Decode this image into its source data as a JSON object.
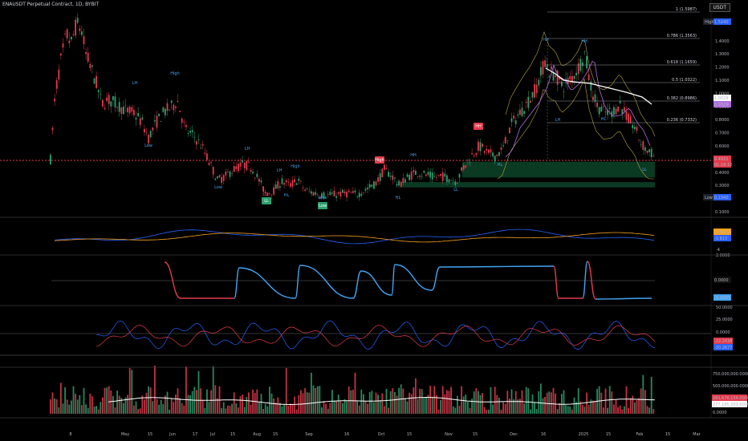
{
  "header": {
    "title": "ENAUSDT Perpetual Contract, 1D, BYBIT"
  },
  "currency": "USDT",
  "colors": {
    "up": "#2ea06f",
    "down": "#e33b4c",
    "blue": "#2962ff",
    "orange": "#f7a21b",
    "white": "#ffffff",
    "purple": "#b06de0",
    "sky": "#41a4f3",
    "green_zone": "#0b3a23"
  },
  "price_axis": {
    "ticks": [
      "1.4000",
      "1.3000",
      "1.2000",
      "1.1000",
      "1.0000",
      "0.9000",
      "0.8000",
      "0.7000",
      "0.6000",
      "0.5000",
      "0.4000",
      "0.3000",
      "0.2000",
      "0.1000"
    ],
    "labels": [
      {
        "text": "High",
        "value": "1.5240",
        "color": "#2962ff"
      },
      {
        "text": "",
        "value": "1.0029",
        "color": "#ffffff"
      },
      {
        "text": "",
        "value": "0.9329",
        "color": "#b06de0"
      },
      {
        "text": "",
        "value": "0.4931",
        "color": "#e33b4c"
      },
      {
        "text": "",
        "value": "01:18:10",
        "color": "#e33b4c"
      },
      {
        "text": "Low",
        "value": "0.1940",
        "color": "#2962ff"
      }
    ]
  },
  "fib_levels": [
    {
      "label": "1 (1.5987)"
    },
    {
      "label": "0.786 (1.3563)"
    },
    {
      "label": "0.618 (1.1659)"
    },
    {
      "label": "0.5 (1.0322)"
    },
    {
      "label": "0.382 (0.8986)"
    },
    {
      "label": "0.236 (0.7332)"
    }
  ],
  "annotations": [
    "LH",
    "High",
    "Low",
    "LH",
    "Low",
    "LL",
    "HL",
    "LH",
    "High",
    "Low",
    "HH",
    "HL",
    "HH",
    "LL",
    "HH",
    "HL",
    "LH",
    "HL",
    "LL"
  ],
  "badges": [
    "HH",
    "Low",
    "High",
    "LL"
  ],
  "panel1": {
    "labels": [
      {
        "value": "-2.6419",
        "color": "#f7a21b"
      },
      {
        "value": "-3.813",
        "color": "#2962ff"
      }
    ],
    "ticks": [
      "-4"
    ]
  },
  "panel2": {
    "labels": [
      {
        "value": "0.0000",
        "color": "#131313"
      },
      {
        "value": "-0.1500",
        "color": "#41a4f3"
      }
    ],
    "ticks": [
      "2.0000"
    ]
  },
  "panel3": {
    "ticks": [
      "50.0000",
      "25.0000",
      "0.0000"
    ],
    "labels": [
      {
        "value": "-22.2438",
        "color": "#e33b4c"
      },
      {
        "value": "-30.2677",
        "color": "#2962ff"
      }
    ]
  },
  "panel4": {
    "ticks": [
      "750,000,000.0000",
      "500,000,000.0000",
      "0.0000"
    ],
    "labels": [
      {
        "value": "281,676,154.0000",
        "color": "#e33b4c"
      },
      {
        "value": "277,185,303.6000",
        "color": "#ffffff"
      }
    ]
  },
  "time_axis": [
    "8",
    "May",
    "15",
    "Jun",
    "17",
    "Jul",
    "15",
    "Aug",
    "15",
    "Sep",
    "16",
    "Oct",
    "15",
    "Nov",
    "15",
    "Dec",
    "16",
    "2025",
    "15",
    "Feb",
    "15",
    "Mar"
  ]
}
